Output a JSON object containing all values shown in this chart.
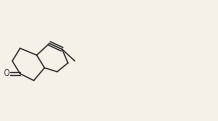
{
  "bg_color": "#f5f0e8",
  "line_color": "#2a2a2a",
  "figsize": [
    2.18,
    1.21
  ],
  "dpi": 100,
  "xlim": [
    0,
    218
  ],
  "ylim": [
    0,
    121
  ]
}
